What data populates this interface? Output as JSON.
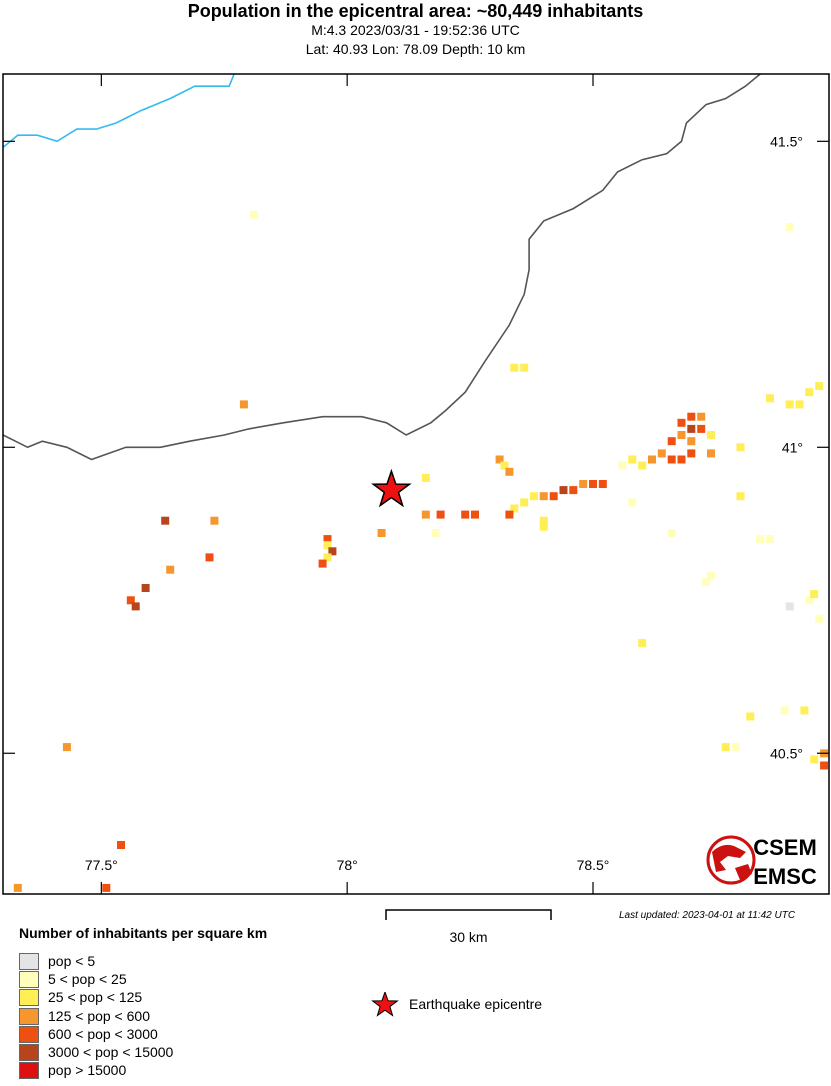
{
  "header": {
    "title": "Population in the epicentral area: ~80,449 inhabitants",
    "event_line": "M:4.3 2023/03/31 - 19:52:36 UTC",
    "location_line": "Lat: 40.93 Lon: 78.09 Depth: 10 km"
  },
  "map": {
    "bounds": {
      "lon_min": 77.3,
      "lon_max": 78.98,
      "lat_min": 40.27,
      "lat_max": 41.61
    },
    "lon_ticks": [
      {
        "value": 77.5,
        "label": "77.5°"
      },
      {
        "value": 78.0,
        "label": "78°"
      },
      {
        "value": 78.5,
        "label": "78.5°"
      }
    ],
    "lat_ticks": [
      {
        "value": 41.5,
        "label": "41.5°"
      },
      {
        "value": 41.0,
        "label": "41°"
      },
      {
        "value": 40.5,
        "label": "40.5°"
      }
    ],
    "epicenter": {
      "lat": 40.93,
      "lon": 78.09
    },
    "border_color": "#555555",
    "river_color": "#33bbee",
    "epicenter_color": "#ee1111",
    "border_path": [
      [
        78.84,
        41.61
      ],
      [
        78.81,
        41.59
      ],
      [
        78.77,
        41.57
      ],
      [
        78.73,
        41.56
      ],
      [
        78.69,
        41.53
      ],
      [
        78.68,
        41.5
      ],
      [
        78.65,
        41.48
      ],
      [
        78.6,
        41.47
      ],
      [
        78.55,
        41.45
      ],
      [
        78.52,
        41.42
      ],
      [
        78.46,
        41.39
      ],
      [
        78.4,
        41.37
      ],
      [
        78.37,
        41.34
      ],
      [
        78.37,
        41.29
      ],
      [
        78.36,
        41.25
      ],
      [
        78.33,
        41.2
      ],
      [
        78.28,
        41.14
      ],
      [
        78.24,
        41.09
      ],
      [
        78.2,
        41.06
      ],
      [
        78.17,
        41.04
      ],
      [
        78.12,
        41.02
      ],
      [
        78.08,
        41.04
      ],
      [
        78.03,
        41.05
      ],
      [
        77.95,
        41.05
      ],
      [
        77.87,
        41.04
      ],
      [
        77.8,
        41.03
      ],
      [
        77.75,
        41.02
      ],
      [
        77.68,
        41.01
      ],
      [
        77.62,
        41.0
      ],
      [
        77.55,
        41.0
      ],
      [
        77.48,
        40.98
      ],
      [
        77.43,
        41.0
      ],
      [
        77.38,
        41.01
      ],
      [
        77.35,
        41.0
      ],
      [
        77.3,
        41.02
      ]
    ],
    "river_path": [
      [
        77.3,
        41.49
      ],
      [
        77.33,
        41.51
      ],
      [
        77.37,
        41.51
      ],
      [
        77.41,
        41.5
      ],
      [
        77.45,
        41.52
      ],
      [
        77.49,
        41.52
      ],
      [
        77.53,
        41.53
      ],
      [
        77.58,
        41.55
      ],
      [
        77.64,
        41.57
      ],
      [
        77.69,
        41.59
      ],
      [
        77.76,
        41.59
      ],
      [
        77.77,
        41.61
      ]
    ],
    "population_cells": [
      {
        "lat": 41.38,
        "lon": 77.81,
        "class": 1
      },
      {
        "lat": 41.36,
        "lon": 78.9,
        "class": 1
      },
      {
        "lat": 41.13,
        "lon": 78.34,
        "class": 2
      },
      {
        "lat": 41.13,
        "lon": 78.36,
        "class": 2
      },
      {
        "lat": 41.07,
        "lon": 77.79,
        "class": 3
      },
      {
        "lat": 41.1,
        "lon": 78.96,
        "class": 2
      },
      {
        "lat": 41.09,
        "lon": 78.94,
        "class": 2
      },
      {
        "lat": 41.08,
        "lon": 78.86,
        "class": 2
      },
      {
        "lat": 41.07,
        "lon": 78.92,
        "class": 2
      },
      {
        "lat": 41.07,
        "lon": 78.9,
        "class": 2
      },
      {
        "lat": 41.05,
        "lon": 78.7,
        "class": 4
      },
      {
        "lat": 41.05,
        "lon": 78.72,
        "class": 3
      },
      {
        "lat": 41.04,
        "lon": 78.68,
        "class": 4
      },
      {
        "lat": 41.03,
        "lon": 78.7,
        "class": 5
      },
      {
        "lat": 41.03,
        "lon": 78.72,
        "class": 4
      },
      {
        "lat": 41.02,
        "lon": 78.68,
        "class": 3
      },
      {
        "lat": 41.02,
        "lon": 78.74,
        "class": 2
      },
      {
        "lat": 41.01,
        "lon": 78.66,
        "class": 4
      },
      {
        "lat": 41.01,
        "lon": 78.7,
        "class": 3
      },
      {
        "lat": 41.0,
        "lon": 78.8,
        "class": 2
      },
      {
        "lat": 40.99,
        "lon": 78.64,
        "class": 3
      },
      {
        "lat": 40.99,
        "lon": 78.7,
        "class": 4
      },
      {
        "lat": 40.99,
        "lon": 78.74,
        "class": 3
      },
      {
        "lat": 40.98,
        "lon": 78.66,
        "class": 4
      },
      {
        "lat": 40.98,
        "lon": 78.68,
        "class": 4
      },
      {
        "lat": 40.98,
        "lon": 78.62,
        "class": 3
      },
      {
        "lat": 40.97,
        "lon": 78.56,
        "class": 1
      },
      {
        "lat": 40.98,
        "lon": 78.58,
        "class": 2
      },
      {
        "lat": 40.97,
        "lon": 78.6,
        "class": 2
      },
      {
        "lat": 40.98,
        "lon": 78.31,
        "class": 3
      },
      {
        "lat": 40.97,
        "lon": 78.32,
        "class": 2
      },
      {
        "lat": 40.96,
        "lon": 78.33,
        "class": 3
      },
      {
        "lat": 40.95,
        "lon": 78.16,
        "class": 2
      },
      {
        "lat": 40.94,
        "lon": 78.52,
        "class": 4
      },
      {
        "lat": 40.94,
        "lon": 78.5,
        "class": 4
      },
      {
        "lat": 40.94,
        "lon": 78.48,
        "class": 3
      },
      {
        "lat": 40.93,
        "lon": 78.46,
        "class": 4
      },
      {
        "lat": 40.93,
        "lon": 78.44,
        "class": 5
      },
      {
        "lat": 40.92,
        "lon": 78.42,
        "class": 4
      },
      {
        "lat": 40.92,
        "lon": 78.4,
        "class": 3
      },
      {
        "lat": 40.92,
        "lon": 78.38,
        "class": 2
      },
      {
        "lat": 40.91,
        "lon": 78.58,
        "class": 1
      },
      {
        "lat": 40.91,
        "lon": 78.36,
        "class": 2
      },
      {
        "lat": 40.9,
        "lon": 78.34,
        "class": 2
      },
      {
        "lat": 40.92,
        "lon": 78.8,
        "class": 2
      },
      {
        "lat": 40.89,
        "lon": 78.16,
        "class": 3
      },
      {
        "lat": 40.89,
        "lon": 78.19,
        "class": 4
      },
      {
        "lat": 40.89,
        "lon": 78.24,
        "class": 4
      },
      {
        "lat": 40.89,
        "lon": 78.26,
        "class": 4
      },
      {
        "lat": 40.89,
        "lon": 78.33,
        "class": 4
      },
      {
        "lat": 40.88,
        "lon": 78.4,
        "class": 2
      },
      {
        "lat": 40.87,
        "lon": 78.4,
        "class": 2
      },
      {
        "lat": 40.86,
        "lon": 78.18,
        "class": 1
      },
      {
        "lat": 40.86,
        "lon": 78.66,
        "class": 1
      },
      {
        "lat": 40.85,
        "lon": 78.84,
        "class": 1
      },
      {
        "lat": 40.85,
        "lon": 78.86,
        "class": 1
      },
      {
        "lat": 40.88,
        "lon": 77.63,
        "class": 5
      },
      {
        "lat": 40.88,
        "lon": 77.73,
        "class": 3
      },
      {
        "lat": 40.86,
        "lon": 78.07,
        "class": 3
      },
      {
        "lat": 40.85,
        "lon": 77.96,
        "class": 4
      },
      {
        "lat": 40.84,
        "lon": 77.96,
        "class": 2
      },
      {
        "lat": 40.83,
        "lon": 77.97,
        "class": 5
      },
      {
        "lat": 40.82,
        "lon": 77.96,
        "class": 2
      },
      {
        "lat": 40.82,
        "lon": 77.72,
        "class": 4
      },
      {
        "lat": 40.81,
        "lon": 77.95,
        "class": 4
      },
      {
        "lat": 40.8,
        "lon": 77.64,
        "class": 3
      },
      {
        "lat": 40.79,
        "lon": 78.74,
        "class": 1
      },
      {
        "lat": 40.78,
        "lon": 78.73,
        "class": 1
      },
      {
        "lat": 40.77,
        "lon": 77.59,
        "class": 5
      },
      {
        "lat": 40.75,
        "lon": 77.56,
        "class": 4
      },
      {
        "lat": 40.74,
        "lon": 77.57,
        "class": 5
      },
      {
        "lat": 40.74,
        "lon": 78.9,
        "class": 0
      },
      {
        "lat": 40.75,
        "lon": 78.94,
        "class": 1
      },
      {
        "lat": 40.76,
        "lon": 78.95,
        "class": 2
      },
      {
        "lat": 40.72,
        "lon": 78.96,
        "class": 1
      },
      {
        "lat": 40.68,
        "lon": 78.6,
        "class": 2
      },
      {
        "lat": 40.56,
        "lon": 78.82,
        "class": 2
      },
      {
        "lat": 40.57,
        "lon": 78.89,
        "class": 1
      },
      {
        "lat": 40.57,
        "lon": 78.93,
        "class": 2
      },
      {
        "lat": 40.51,
        "lon": 78.77,
        "class": 2
      },
      {
        "lat": 40.51,
        "lon": 78.79,
        "class": 1
      },
      {
        "lat": 40.51,
        "lon": 77.43,
        "class": 3
      },
      {
        "lat": 40.5,
        "lon": 78.97,
        "class": 3
      },
      {
        "lat": 40.49,
        "lon": 78.95,
        "class": 2
      },
      {
        "lat": 40.48,
        "lon": 78.97,
        "class": 4
      },
      {
        "lat": 40.35,
        "lon": 77.54,
        "class": 4
      },
      {
        "lat": 40.28,
        "lon": 77.33,
        "class": 3
      },
      {
        "lat": 40.28,
        "lon": 77.51,
        "class": 4
      }
    ]
  },
  "scale_bar": {
    "label": "30 km"
  },
  "last_updated": "Last updated: 2023-04-01 at 11:42 UTC",
  "logo": {
    "line1": "CSEM",
    "line2": "EMSC"
  },
  "legend": {
    "title": "Number of inhabitants per square km",
    "items": [
      {
        "label": "pop < 5",
        "color": "#e4e4e4"
      },
      {
        "label": "5 < pop < 25",
        "color": "#ffffbb"
      },
      {
        "label": "25 < pop < 125",
        "color": "#ffee55"
      },
      {
        "label": "125 < pop < 600",
        "color": "#f5962e"
      },
      {
        "label": "600 < pop < 3000",
        "color": "#ee5011"
      },
      {
        "label": "3000 < pop < 15000",
        "color": "#b8441c"
      },
      {
        "label": "pop > 15000",
        "color": "#dd1111"
      }
    ],
    "epicentre_label": "Earthquake epicentre"
  }
}
